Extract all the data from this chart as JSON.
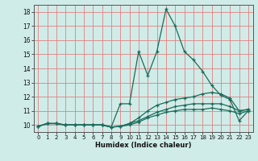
{
  "title": "",
  "xlabel": "Humidex (Indice chaleur)",
  "xlim": [
    -0.5,
    23.5
  ],
  "ylim": [
    9.5,
    18.5
  ],
  "xticks": [
    0,
    1,
    2,
    3,
    4,
    5,
    6,
    7,
    8,
    9,
    10,
    11,
    12,
    13,
    14,
    15,
    16,
    17,
    18,
    19,
    20,
    21,
    22,
    23
  ],
  "yticks": [
    10,
    11,
    12,
    13,
    14,
    15,
    16,
    17,
    18
  ],
  "bg_color": "#d0ece8",
  "grid_color": "#e08080",
  "line_color": "#1a6b5a",
  "line1_y": [
    9.9,
    10.1,
    10.1,
    10.0,
    10.0,
    10.0,
    10.0,
    10.0,
    9.85,
    11.5,
    11.5,
    15.2,
    13.5,
    15.2,
    18.2,
    17.0,
    15.2,
    14.6,
    13.8,
    12.8,
    12.1,
    11.8,
    10.3,
    11.0
  ],
  "line2_y": [
    9.9,
    10.1,
    10.1,
    10.0,
    10.0,
    10.0,
    10.0,
    10.0,
    9.85,
    9.9,
    10.1,
    10.5,
    11.0,
    11.4,
    11.6,
    11.8,
    11.9,
    12.0,
    12.2,
    12.3,
    12.2,
    11.9,
    11.0,
    11.1
  ],
  "line3_y": [
    9.9,
    10.1,
    10.1,
    10.0,
    10.0,
    10.0,
    10.0,
    10.0,
    9.85,
    9.9,
    10.1,
    10.3,
    10.6,
    10.9,
    11.1,
    11.3,
    11.4,
    11.5,
    11.5,
    11.5,
    11.5,
    11.3,
    11.0,
    11.1
  ],
  "line4_y": [
    9.9,
    10.1,
    10.1,
    10.0,
    10.0,
    10.0,
    10.0,
    10.0,
    9.85,
    9.9,
    10.0,
    10.2,
    10.5,
    10.7,
    10.9,
    11.0,
    11.1,
    11.1,
    11.1,
    11.2,
    11.1,
    11.0,
    10.8,
    11.0
  ]
}
